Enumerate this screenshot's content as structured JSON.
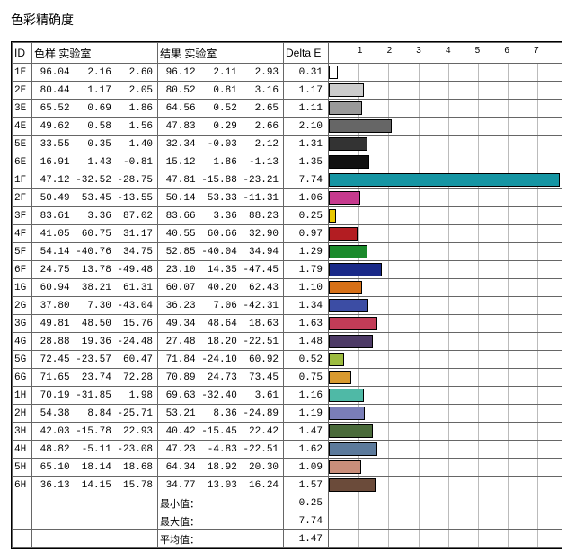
{
  "title": "色彩精确度",
  "header": {
    "id": "ID",
    "sample": "色样 实验室",
    "result": "结果 实验室",
    "delta": "Delta E",
    "chart_ticks": [
      1,
      2,
      3,
      4,
      5,
      6,
      7
    ]
  },
  "chart": {
    "xmax": 7.8,
    "grid_color": "#bbbbbb",
    "border_color": "#000000"
  },
  "rows": [
    {
      "id": "1E",
      "s": [
        96.04,
        2.16,
        2.6
      ],
      "r": [
        96.12,
        2.11,
        2.93
      ],
      "de": 0.31,
      "color": "#ffffff"
    },
    {
      "id": "2E",
      "s": [
        80.44,
        1.17,
        2.05
      ],
      "r": [
        80.52,
        0.81,
        3.16
      ],
      "de": 1.17,
      "color": "#cccccc"
    },
    {
      "id": "3E",
      "s": [
        65.52,
        0.69,
        1.86
      ],
      "r": [
        64.56,
        0.52,
        2.65
      ],
      "de": 1.11,
      "color": "#999999"
    },
    {
      "id": "4E",
      "s": [
        49.62,
        0.58,
        1.56
      ],
      "r": [
        47.83,
        0.29,
        2.66
      ],
      "de": 2.1,
      "color": "#666666"
    },
    {
      "id": "5E",
      "s": [
        33.55,
        0.35,
        1.4
      ],
      "r": [
        32.34,
        -0.03,
        2.12
      ],
      "de": 1.31,
      "color": "#333333"
    },
    {
      "id": "6E",
      "s": [
        16.91,
        1.43,
        -0.81
      ],
      "r": [
        15.12,
        1.86,
        -1.13
      ],
      "de": 1.35,
      "color": "#111111"
    },
    {
      "id": "1F",
      "s": [
        47.12,
        -32.52,
        -28.75
      ],
      "r": [
        47.81,
        -15.88,
        -23.21
      ],
      "de": 7.74,
      "color": "#1595a3"
    },
    {
      "id": "2F",
      "s": [
        50.49,
        53.45,
        -13.55
      ],
      "r": [
        50.14,
        53.33,
        -11.31
      ],
      "de": 1.06,
      "color": "#c63a8e"
    },
    {
      "id": "3F",
      "s": [
        83.61,
        3.36,
        87.02
      ],
      "r": [
        83.66,
        3.36,
        88.23
      ],
      "de": 0.25,
      "color": "#e8c700"
    },
    {
      "id": "4F",
      "s": [
        41.05,
        60.75,
        31.17
      ],
      "r": [
        40.55,
        60.66,
        32.9
      ],
      "de": 0.97,
      "color": "#b31d22"
    },
    {
      "id": "5F",
      "s": [
        54.14,
        -40.76,
        34.75
      ],
      "r": [
        52.85,
        -40.04,
        34.94
      ],
      "de": 1.29,
      "color": "#1a8a2b"
    },
    {
      "id": "6F",
      "s": [
        24.75,
        13.78,
        -49.48
      ],
      "r": [
        23.1,
        14.35,
        -47.45
      ],
      "de": 1.79,
      "color": "#1a2a88"
    },
    {
      "id": "1G",
      "s": [
        60.94,
        38.21,
        61.31
      ],
      "r": [
        60.07,
        40.2,
        62.43
      ],
      "de": 1.1,
      "color": "#d67017"
    },
    {
      "id": "2G",
      "s": [
        37.8,
        7.3,
        -43.04
      ],
      "r": [
        36.23,
        7.06,
        -42.31
      ],
      "de": 1.34,
      "color": "#3c4da4"
    },
    {
      "id": "3G",
      "s": [
        49.81,
        48.5,
        15.76
      ],
      "r": [
        49.34,
        48.64,
        18.63
      ],
      "de": 1.63,
      "color": "#c23c57"
    },
    {
      "id": "4G",
      "s": [
        28.88,
        19.36,
        -24.48
      ],
      "r": [
        27.48,
        18.2,
        -22.51
      ],
      "de": 1.48,
      "color": "#4d3a66"
    },
    {
      "id": "5G",
      "s": [
        72.45,
        -23.57,
        60.47
      ],
      "r": [
        71.84,
        -24.1,
        60.92
      ],
      "de": 0.52,
      "color": "#9cbb3f"
    },
    {
      "id": "6G",
      "s": [
        71.65,
        23.74,
        72.28
      ],
      "r": [
        70.89,
        24.73,
        73.45
      ],
      "de": 0.75,
      "color": "#d89a2f"
    },
    {
      "id": "1H",
      "s": [
        70.19,
        -31.85,
        1.98
      ],
      "r": [
        69.63,
        -32.4,
        3.61
      ],
      "de": 1.16,
      "color": "#4fb9a6"
    },
    {
      "id": "2H",
      "s": [
        54.38,
        8.84,
        -25.71
      ],
      "r": [
        53.21,
        8.36,
        -24.89
      ],
      "de": 1.19,
      "color": "#7a7eb8"
    },
    {
      "id": "3H",
      "s": [
        42.03,
        -15.78,
        22.93
      ],
      "r": [
        40.42,
        -15.45,
        22.42
      ],
      "de": 1.47,
      "color": "#4a6b3a"
    },
    {
      "id": "4H",
      "s": [
        48.82,
        -5.11,
        -23.08
      ],
      "r": [
        47.23,
        -4.83,
        -22.51
      ],
      "de": 1.62,
      "color": "#5c7a9b"
    },
    {
      "id": "5H",
      "s": [
        65.1,
        18.14,
        18.68
      ],
      "r": [
        64.34,
        18.92,
        20.3
      ],
      "de": 1.09,
      "color": "#c98e7a"
    },
    {
      "id": "6H",
      "s": [
        36.13,
        14.15,
        15.78
      ],
      "r": [
        34.77,
        13.03,
        16.24
      ],
      "de": 1.57,
      "color": "#6b4b3a"
    }
  ],
  "summary": [
    {
      "label": "最小值：",
      "value": 0.25
    },
    {
      "label": "最大值：",
      "value": 7.74
    },
    {
      "label": "平均值：",
      "value": 1.47
    }
  ]
}
